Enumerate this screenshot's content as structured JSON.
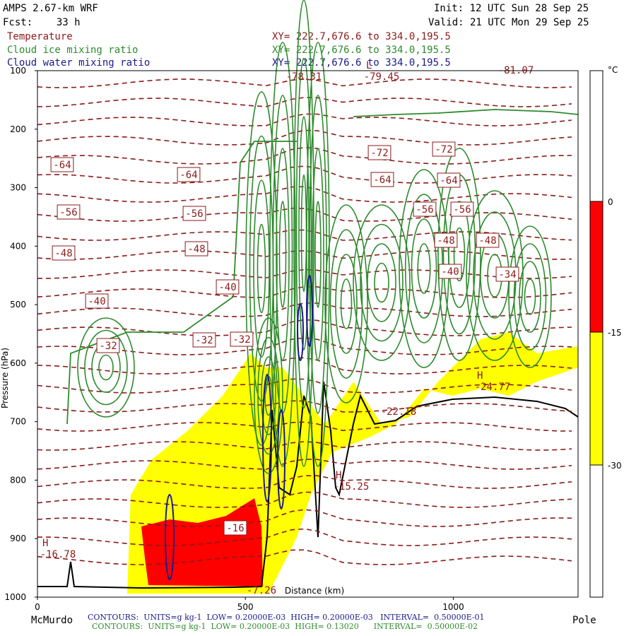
{
  "header": {
    "model": "AMPS 2.67-km WRF",
    "fcst": "Fcst:    33 h",
    "init": "Init: 12 UTC Sun 28 Sep 25",
    "valid": "Valid: 21 UTC Mon 29 Sep 25"
  },
  "fields": [
    {
      "name": "Temperature",
      "xy": "XY= 222.7,676.6 to 334.0,195.5"
    },
    {
      "name": "Cloud ice mixing ratio",
      "xy": "XY= 222.7,676.6 to 334.0,195.5"
    },
    {
      "name": "Cloud water mixing ratio",
      "xy": "XY= 222.7,676.6 to 334.0,195.5"
    }
  ],
  "footer": {
    "blue": "CONTOURS:  UNITS=g kg-1  LOW= 0.20000E-03  HIGH= 0.20000E-03   INTERVAL=  0.50000E-01",
    "green": "CONTOURS:  UNITS=g kg-1  LOW= 0.20000E-03  HIGH= 0.13020      INTERVAL=  0.50000E-02",
    "left_end": "McMurdo",
    "right_end": "Pole",
    "x_axis_label": "Distance (km)"
  },
  "colors": {
    "temperature": "#8b1a1a",
    "cloud_ice": "#2e8b2e",
    "cloud_water": "#1a1a8b",
    "shade_0_to_-15": "#ff0000",
    "shade_-15_to_-30": "#ffff00"
  },
  "chart_data": {
    "type": "cross-section contour",
    "ylabel": "Pressure (hPa)",
    "y_ticks": [
      100,
      200,
      300,
      400,
      500,
      600,
      700,
      800,
      900,
      1000
    ],
    "x_ticks": [
      0,
      500,
      1000
    ],
    "xlim": [
      0,
      1300
    ],
    "ylim": [
      1000,
      100
    ],
    "colorbar": {
      "unit": "°C",
      "levels": [
        0,
        -15,
        -30
      ]
    },
    "temperature_labels": [
      -64,
      -56,
      -48,
      -40,
      -32,
      -64,
      -56,
      -48,
      -40,
      -32,
      -32,
      -16,
      -72,
      -72,
      -64,
      -64,
      -56,
      -56,
      -48,
      -48,
      -40,
      -34
    ],
    "extrema": [
      {
        "type": "L",
        "value": "-79.45"
      },
      {
        "type": "",
        "value": "-78.31"
      },
      {
        "type": "",
        "value": "-81.07"
      },
      {
        "type": "H",
        "value": "-16.78"
      },
      {
        "type": "H",
        "value": "-15.25"
      },
      {
        "type": "H",
        "value": "-24.77"
      },
      {
        "type": "",
        "value": "-22.18"
      },
      {
        "type": "",
        "value": "-7.26"
      }
    ]
  }
}
